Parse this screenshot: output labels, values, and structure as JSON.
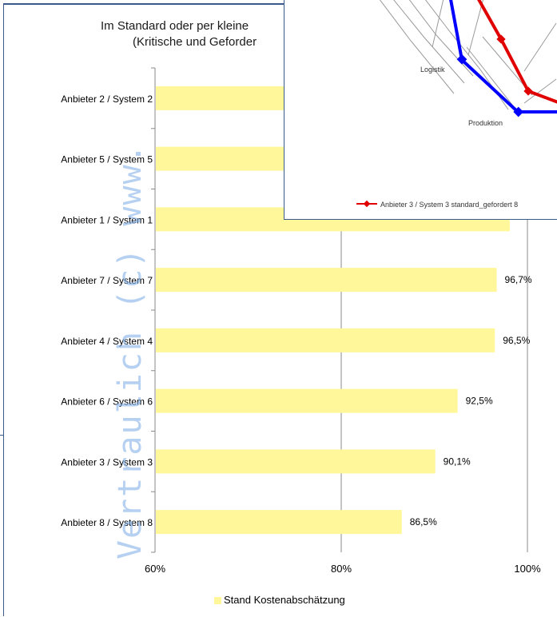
{
  "bar_chart": {
    "title_line1": "Im Standard oder per kleine",
    "title_line2": "(Kritische und Geforder",
    "legend_label": "Stand Kostenabschätzung",
    "bar_color": "#fff799"
  },
  "radar_chart": {
    "label_logistik": "Logistik",
    "label_produktion": "Produktion",
    "legend_label": "Anbieter 3 / System 3 standard_gefordert 8"
  },
  "watermark": "Vertraulich (c) www.",
  "chart_data": [
    {
      "type": "bar",
      "orientation": "horizontal",
      "title": "Im Standard oder per kleine (Kritische und Geforder",
      "categories": [
        "Anbieter 2 / System 2",
        "Anbieter 5 / System 5",
        "Anbieter 1 / System 1",
        "Anbieter 7 / System 7",
        "Anbieter 4 / System 4",
        "Anbieter 6 / System 6",
        "Anbieter 3 / System 3",
        "Anbieter 8 / System 8"
      ],
      "series": [
        {
          "name": "Stand Kostenabschätzung",
          "values": [
            100,
            100,
            98.1,
            96.7,
            96.5,
            92.5,
            90.1,
            86.5
          ],
          "labels": [
            "",
            "",
            "",
            "96,7%",
            "96,5%",
            "92,5%",
            "90,1%",
            "86,5%"
          ]
        }
      ],
      "xlim": [
        60,
        100
      ],
      "xticks": [
        "60%",
        "80%",
        "100%"
      ],
      "grid": true,
      "legend": "bottom"
    },
    {
      "type": "radar",
      "axes_visible": [
        "Logistik",
        "Produktion"
      ],
      "series": [
        {
          "name": "Anbieter 3 / System 3 standard_gefordert 8",
          "color": "#ff0000"
        },
        {
          "name": "",
          "color": "#0000ff"
        }
      ]
    }
  ]
}
